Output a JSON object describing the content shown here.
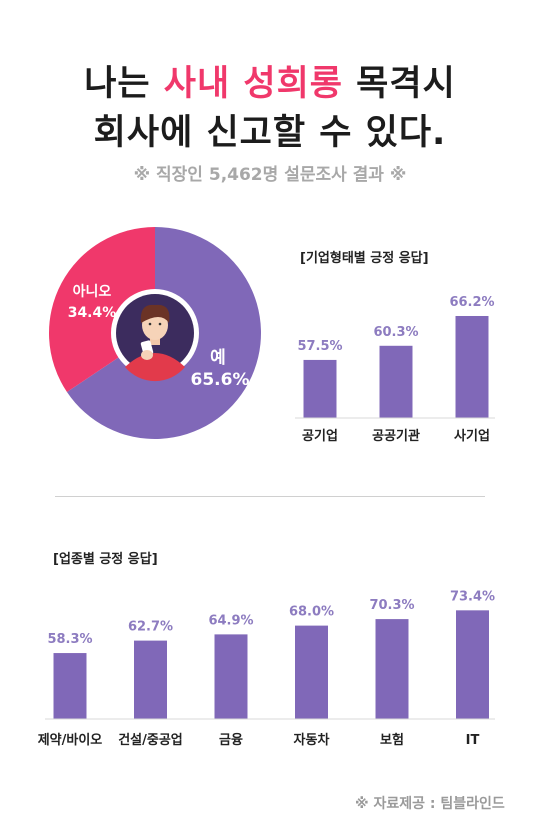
{
  "title": {
    "line1_prefix": "나는 ",
    "line1_highlight": "사내 성희롱",
    "line1_suffix": " 목격시",
    "line2": "회사에 신고할 수 있다."
  },
  "subtitle": "※ 직장인 5,462명 설문조사 결과 ※",
  "footer": "※ 자료제공 : 팀블라인드",
  "colors": {
    "purple": "#8068b8",
    "pink": "#f0386b",
    "face_bg": "#3c2c5e",
    "label_purple": "#8d7cc0"
  },
  "chart_data": [
    {
      "type": "pie",
      "slices": [
        {
          "label": "예",
          "value": 65.6,
          "display": "65.6%",
          "color": "#8068b8"
        },
        {
          "label": "아니오",
          "value": 34.4,
          "display": "34.4%",
          "color": "#f0386b"
        }
      ]
    },
    {
      "type": "bar",
      "title": "[기업형태별 긍정 응답]",
      "categories": [
        "공기업",
        "공공기관",
        "사기업"
      ],
      "values": [
        57.5,
        60.3,
        66.2
      ],
      "labels": [
        "57.5%",
        "60.3%",
        "66.2%"
      ]
    },
    {
      "type": "bar",
      "title": "[업종별 긍정 응답]",
      "categories": [
        "제약/바이오",
        "건설/중공업",
        "금융",
        "자동차",
        "보험",
        "IT"
      ],
      "values": [
        58.3,
        62.7,
        64.9,
        68.0,
        70.3,
        73.4
      ],
      "labels": [
        "58.3%",
        "62.7%",
        "64.9%",
        "68.0%",
        "70.3%",
        "73.4%"
      ]
    }
  ]
}
